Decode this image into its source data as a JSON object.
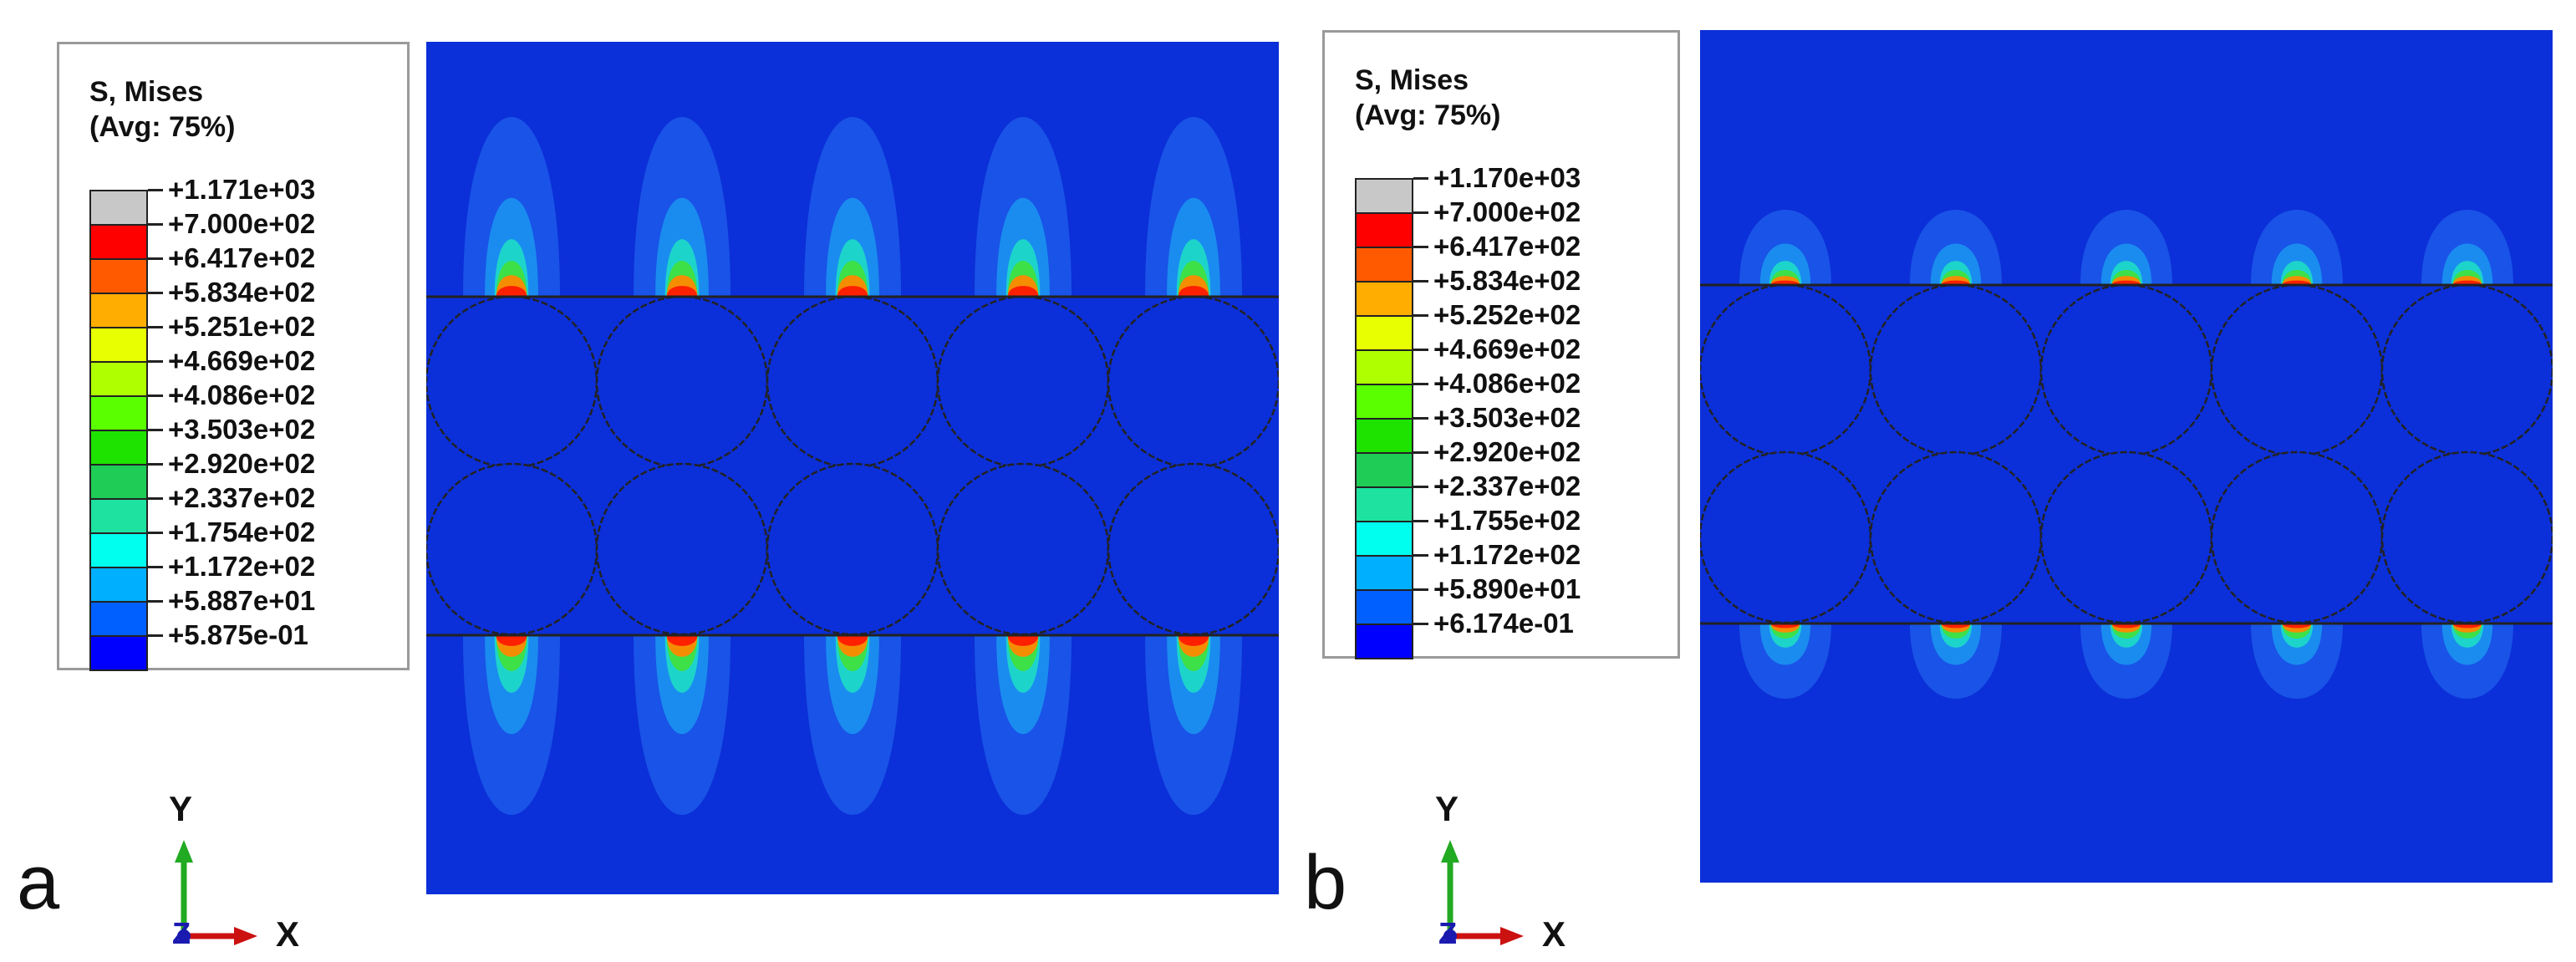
{
  "panels": [
    {
      "letter": "a",
      "legend": {
        "title_line1": "S, Mises",
        "title_line2": "(Avg: 75%)",
        "values": [
          "+1.171e+03",
          "+7.000e+02",
          "+6.417e+02",
          "+5.834e+02",
          "+5.251e+02",
          "+4.669e+02",
          "+4.086e+02",
          "+3.503e+02",
          "+2.920e+02",
          "+2.337e+02",
          "+1.754e+02",
          "+1.172e+02",
          "+5.887e+01",
          "+5.875e-01"
        ]
      },
      "axes": {
        "y": "Y",
        "z": "Z",
        "x": "X"
      }
    },
    {
      "letter": "b",
      "legend": {
        "title_line1": "S, Mises",
        "title_line2": "(Avg: 75%)",
        "values": [
          "+1.170e+03",
          "+7.000e+02",
          "+6.417e+02",
          "+5.834e+02",
          "+5.252e+02",
          "+4.669e+02",
          "+4.086e+02",
          "+3.503e+02",
          "+2.920e+02",
          "+2.337e+02",
          "+1.755e+02",
          "+1.172e+02",
          "+5.890e+01",
          "+6.174e-01"
        ]
      },
      "axes": {
        "y": "Y",
        "z": "Z",
        "x": "X"
      }
    }
  ],
  "colors": {
    "bands": [
      "#c8c8c8",
      "#ff0000",
      "#ff5a00",
      "#ffad00",
      "#e7ff00",
      "#b0ff00",
      "#5aff00",
      "#1ee200",
      "#1ecc56",
      "#1ee2a0",
      "#00ffef",
      "#00b0ff",
      "#0060ff",
      "#0000ff"
    ],
    "field_background": "#0b2fd8",
    "x_axis": "#cc1111",
    "y_axis": "#22aa22",
    "z_axis": "#1a1ab0"
  }
}
